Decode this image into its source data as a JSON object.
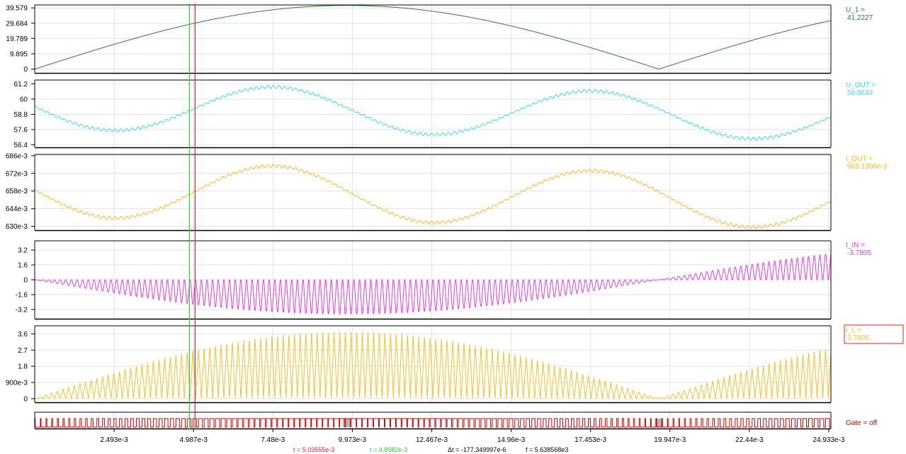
{
  "chart_data": {
    "type": "line",
    "time_axis": {
      "unit": "s",
      "range": [
        0,
        0.025
      ],
      "tick_values": [
        0.002493,
        0.004987,
        0.00748,
        0.009973,
        0.012467,
        0.01496,
        0.017453,
        0.019947,
        0.02244,
        0.024933
      ],
      "tick_labels": [
        "2.493e-3",
        "4.987e-3",
        "7.48e-3",
        "9.973e-3",
        "12.467e-3",
        "14.96e-3",
        "17.453e-3",
        "19.947e-3",
        "22.44e-3",
        "24.933e-3"
      ]
    },
    "panels": [
      {
        "id": "u1",
        "name": "U_1 =",
        "readout": "41.2227",
        "color": "#2e7d32",
        "ylim": [
          -2.5,
          41.5
        ],
        "yticks": [
          0,
          9.895,
          19.789,
          29.684,
          39.579
        ],
        "ytick_labels": [
          "0",
          "9.895",
          "19.789",
          "29.684",
          "39.579"
        ],
        "highlight": false,
        "signal": {
          "kind": "abs_sine",
          "amplitude": 41.2,
          "period": 0.0196,
          "phase": 0.0,
          "offset": 0,
          "ripple_amplitude": 0,
          "ripple_freq": 0
        }
      },
      {
        "id": "uout",
        "name": "U_OUT =",
        "readout": "59.8633",
        "color": "#3fd7e4",
        "ylim": [
          56.2,
          61.5
        ],
        "yticks": [
          56.4,
          57.6,
          58.8,
          60,
          61.2
        ],
        "ytick_labels": [
          "56.4",
          "57.6",
          "58.8",
          "60",
          "61.2"
        ],
        "highlight": false,
        "signal": {
          "kind": "sine",
          "amplitude": 1.8,
          "period": 0.01,
          "phase": 0.0075,
          "offset": 59.4,
          "drift": -0.8,
          "ripple_amplitude": 0.12,
          "ripple_freq": 5638
        }
      },
      {
        "id": "iout",
        "name": "I_OUT =",
        "readout": "665.1306e-3",
        "color": "#f4b82d",
        "ylim": [
          0.627,
          0.687
        ],
        "yticks": [
          0.63,
          0.644,
          0.658,
          0.672,
          0.686
        ],
        "ytick_labels": [
          "630e-3",
          "644e-3",
          "658e-3",
          "672e-3",
          "686e-3"
        ],
        "highlight": false,
        "signal": {
          "kind": "sine",
          "amplitude": 0.0215,
          "period": 0.01,
          "phase": 0.0075,
          "offset": 0.659,
          "drift": -0.009,
          "ripple_amplitude": 0.0012,
          "ripple_freq": 5638
        }
      },
      {
        "id": "iin",
        "name": "I_IN =",
        "readout": "-3.7805",
        "color": "#e33cde",
        "ylim": [
          -4.2,
          4.2
        ],
        "yticks": [
          -3.2,
          -1.6,
          0,
          1.6,
          3.2
        ],
        "ytick_labels": [
          "-3.2",
          "-1.6",
          "0",
          "1.6",
          "3.2"
        ],
        "highlight": false,
        "signal": {
          "kind": "bipolar_switched",
          "amplitude": 3.7,
          "period": 0.0196,
          "phase": 0.0,
          "offset": 0,
          "ripple_amplitude": 0,
          "ripple_freq": 5638
        }
      },
      {
        "id": "il",
        "name": "I_L =",
        "readout": "3.7805",
        "color": "#f2c12e",
        "ylim": [
          -0.2,
          4.05
        ],
        "yticks": [
          0,
          0.9,
          1.8,
          2.7,
          3.6
        ],
        "ytick_labels": [
          "0",
          "900e-3",
          "1.8",
          "2.7",
          "3.6"
        ],
        "highlight": true,
        "signal": {
          "kind": "unipolar_switched",
          "amplitude": 3.75,
          "period": 0.0196,
          "phase": 0.0,
          "offset": 0,
          "ripple_amplitude": 0,
          "ripple_freq": 5638
        }
      },
      {
        "id": "gate",
        "name": "Gate = off",
        "readout": "",
        "color": "#cc0000",
        "ylim": [
          0,
          1
        ],
        "yticks": [],
        "ytick_labels": [],
        "highlight": false,
        "signal": {
          "kind": "pwm",
          "amplitude": 1,
          "period": 0.0196,
          "phase": 0.0,
          "offset": 0,
          "ripple_amplitude": 0,
          "ripple_freq": 5638
        }
      }
    ],
    "cursors": [
      {
        "label": "t = 5.03555e-3",
        "t": 0.00503555,
        "color": "#e8263a"
      },
      {
        "label": "t = 4.8582e-3",
        "t": 0.0048582,
        "color": "#2ecc40"
      }
    ],
    "measurements": {
      "delta_t": "Δt = -177.349997e-6",
      "frequency": "f = 5.638568e3"
    }
  }
}
